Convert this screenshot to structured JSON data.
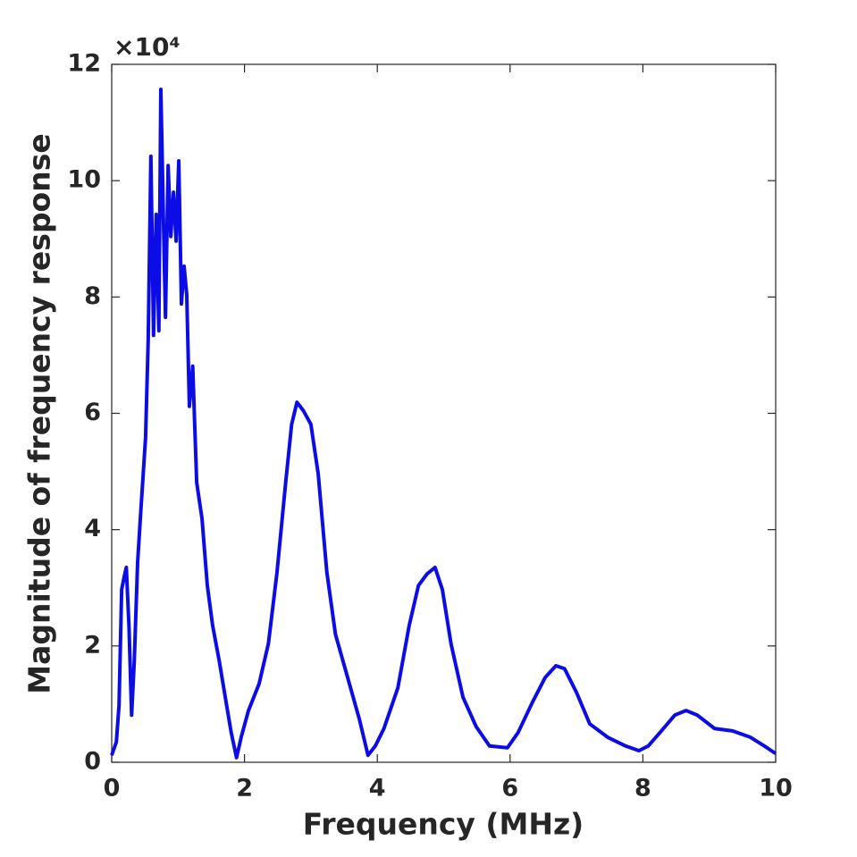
{
  "chart_data": {
    "type": "line",
    "xlabel": "Frequency (MHz)",
    "ylabel": "Magnitude of frequency response",
    "y_multiplier": "×10⁴",
    "color": "#0c0ce6",
    "xlim": [
      0,
      10
    ],
    "xticks": [
      0,
      2,
      4,
      6,
      8,
      10
    ],
    "ylim": [
      0,
      12
    ],
    "yticks": [
      0,
      2,
      4,
      6,
      8,
      10,
      12
    ],
    "grid": false,
    "x": [
      0,
      0.07,
      0.11,
      0.15,
      0.19,
      0.22,
      0.26,
      0.3,
      0.34,
      0.39,
      0.44,
      0.51,
      0.55,
      0.59,
      0.63,
      0.67,
      0.71,
      0.74,
      0.78,
      0.81,
      0.85,
      0.89,
      0.93,
      0.97,
      1.01,
      1.05,
      1.09,
      1.13,
      1.17,
      1.22,
      1.28,
      1.36,
      1.44,
      1.52,
      1.62,
      1.71,
      1.8,
      1.88,
      1.95,
      2.06,
      2.22,
      2.36,
      2.49,
      2.62,
      2.71,
      2.79,
      2.89,
      3.0,
      3.11,
      3.24,
      3.37,
      3.56,
      3.73,
      3.86,
      3.97,
      4.1,
      4.31,
      4.48,
      4.62,
      4.75,
      4.87,
      4.98,
      5.11,
      5.29,
      5.49,
      5.69,
      5.96,
      6.12,
      6.34,
      6.53,
      6.69,
      6.82,
      7.0,
      7.2,
      7.47,
      7.74,
      7.94,
      8.08,
      8.28,
      8.48,
      8.65,
      8.82,
      9.08,
      9.35,
      9.62,
      9.83,
      10
    ],
    "values": [
      0.12,
      0.35,
      0.97,
      2.97,
      3.2,
      3.35,
      2.35,
      0.81,
      1.74,
      3.43,
      4.35,
      5.58,
      7.27,
      10.42,
      7.34,
      9.42,
      7.42,
      11.57,
      9.27,
      7.65,
      10.26,
      9.04,
      9.8,
      8.96,
      10.34,
      7.88,
      8.53,
      8.04,
      6.12,
      6.81,
      4.81,
      4.19,
      3.04,
      2.35,
      1.74,
      1.12,
      0.51,
      0.08,
      0.43,
      0.89,
      1.35,
      2.04,
      3.27,
      4.81,
      5.81,
      6.19,
      6.04,
      5.81,
      4.96,
      3.27,
      2.2,
      1.43,
      0.74,
      0.12,
      0.28,
      0.58,
      1.28,
      2.35,
      3.04,
      3.24,
      3.35,
      2.97,
      2.04,
      1.12,
      0.61,
      0.28,
      0.25,
      0.51,
      1.04,
      1.46,
      1.66,
      1.61,
      1.2,
      0.66,
      0.43,
      0.28,
      0.2,
      0.28,
      0.54,
      0.81,
      0.89,
      0.81,
      0.58,
      0.54,
      0.43,
      0.28,
      0.15
    ]
  }
}
